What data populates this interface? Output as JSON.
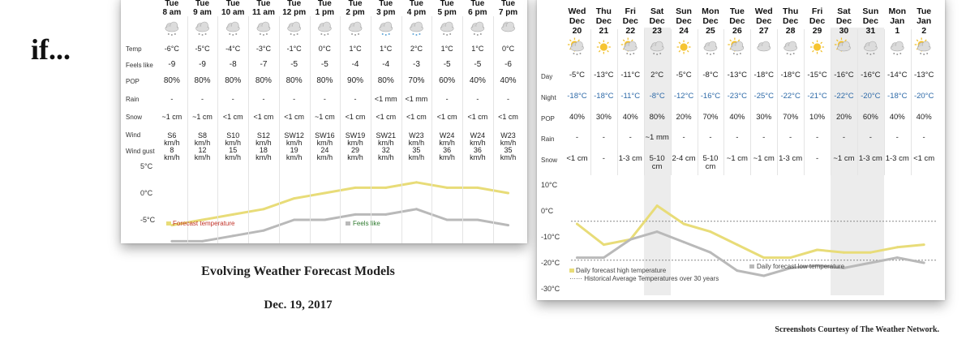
{
  "headline": "if...",
  "caption_title": "Evolving Weather Forecast Models",
  "caption_date": "Dec. 19, 2017",
  "credit": "Screenshots Courtesy of The Weather Network.",
  "hourly": {
    "row_labels": [
      "Temp",
      "Feels like",
      "POP",
      "Rain",
      "Snow",
      "Wind",
      "Wind gust"
    ],
    "hours": [
      {
        "day": "Tue",
        "time": "8 am",
        "icon": "cloud-snow-icon",
        "temp": "-6°C",
        "feels": "-9",
        "pop": "80%",
        "rain": "-",
        "snow": "~1 cm",
        "wind": "S6",
        "gust": "8"
      },
      {
        "day": "Tue",
        "time": "9 am",
        "icon": "cloud-snow-icon",
        "temp": "-5°C",
        "feels": "-9",
        "pop": "80%",
        "rain": "-",
        "snow": "~1 cm",
        "wind": "S8",
        "gust": "12"
      },
      {
        "day": "Tue",
        "time": "10 am",
        "icon": "cloud-snow-icon",
        "temp": "-4°C",
        "feels": "-8",
        "pop": "80%",
        "rain": "-",
        "snow": "<1 cm",
        "wind": "S10",
        "gust": "15"
      },
      {
        "day": "Tue",
        "time": "11 am",
        "icon": "cloud-snow-icon",
        "temp": "-3°C",
        "feels": "-7",
        "pop": "80%",
        "rain": "-",
        "snow": "<1 cm",
        "wind": "S12",
        "gust": "18"
      },
      {
        "day": "Tue",
        "time": "12 pm",
        "icon": "cloud-snow-icon",
        "temp": "-1°C",
        "feels": "-5",
        "pop": "80%",
        "rain": "-",
        "snow": "<1 cm",
        "wind": "SW12",
        "gust": "19"
      },
      {
        "day": "Tue",
        "time": "1 pm",
        "icon": "cloud-snow-icon",
        "temp": "0°C",
        "feels": "-5",
        "pop": "80%",
        "rain": "-",
        "snow": "~1 cm",
        "wind": "SW16",
        "gust": "24"
      },
      {
        "day": "Tue",
        "time": "2 pm",
        "icon": "cloud-snow-icon",
        "temp": "1°C",
        "feels": "-4",
        "pop": "90%",
        "rain": "-",
        "snow": "<1 cm",
        "wind": "SW19",
        "gust": "29"
      },
      {
        "day": "Tue",
        "time": "3 pm",
        "icon": "cloud-mixed-icon",
        "temp": "1°C",
        "feels": "-4",
        "pop": "80%",
        "rain": "<1 mm",
        "snow": "<1 cm",
        "wind": "SW21",
        "gust": "32"
      },
      {
        "day": "Tue",
        "time": "4 pm",
        "icon": "cloud-mixed-icon",
        "temp": "2°C",
        "feels": "-3",
        "pop": "70%",
        "rain": "<1 mm",
        "snow": "<1 cm",
        "wind": "W23",
        "gust": "35"
      },
      {
        "day": "Tue",
        "time": "5 pm",
        "icon": "cloud-snow-icon",
        "temp": "1°C",
        "feels": "-5",
        "pop": "60%",
        "rain": "-",
        "snow": "<1 cm",
        "wind": "W24",
        "gust": "36"
      },
      {
        "day": "Tue",
        "time": "6 pm",
        "icon": "cloud-snow-icon",
        "temp": "1°C",
        "feels": "-5",
        "pop": "40%",
        "rain": "-",
        "snow": "<1 cm",
        "wind": "W24",
        "gust": "36"
      },
      {
        "day": "Tue",
        "time": "7 pm",
        "icon": "cloud-night-icon",
        "temp": "0°C",
        "feels": "-6",
        "pop": "40%",
        "rain": "-",
        "snow": "<1 cm",
        "wind": "W23",
        "gust": "35"
      }
    ],
    "wind_unit": "km/h"
  },
  "daily": {
    "row_labels": [
      "Day",
      "Night",
      "POP",
      "Rain",
      "Snow"
    ],
    "days": [
      {
        "dow": "Wed",
        "month": "Dec",
        "date": "20",
        "icon": "sun-cloud-snow-icon",
        "day": "-5°C",
        "night": "-18°C",
        "pop": "40%",
        "rain": "-",
        "snow": "<1 cm"
      },
      {
        "dow": "Thu",
        "month": "Dec",
        "date": "21",
        "icon": "sun-icon",
        "day": "-13°C",
        "night": "-18°C",
        "pop": "30%",
        "rain": "-",
        "snow": "-"
      },
      {
        "dow": "Fri",
        "month": "Dec",
        "date": "22",
        "icon": "sun-cloud-snow-icon",
        "day": "-11°C",
        "night": "-11°C",
        "pop": "40%",
        "rain": "-",
        "snow": "1-3 cm"
      },
      {
        "dow": "Sat",
        "month": "Dec",
        "date": "23",
        "icon": "cloud-snow-icon",
        "day": "2°C",
        "night": "-8°C",
        "pop": "80%",
        "rain": "~1 mm",
        "snow": "5-10 cm",
        "shaded": true
      },
      {
        "dow": "Sun",
        "month": "Dec",
        "date": "24",
        "icon": "sun-icon",
        "day": "-5°C",
        "night": "-12°C",
        "pop": "20%",
        "rain": "-",
        "snow": "2-4 cm"
      },
      {
        "dow": "Mon",
        "month": "Dec",
        "date": "25",
        "icon": "cloud-snow-icon",
        "day": "-8°C",
        "night": "-16°C",
        "pop": "70%",
        "rain": "-",
        "snow": "5-10 cm"
      },
      {
        "dow": "Tue",
        "month": "Dec",
        "date": "26",
        "icon": "sun-cloud-snow-icon",
        "day": "-13°C",
        "night": "-23°C",
        "pop": "40%",
        "rain": "-",
        "snow": "~1 cm"
      },
      {
        "dow": "Wed",
        "month": "Dec",
        "date": "27",
        "icon": "cloud-icon",
        "day": "-18°C",
        "night": "-25°C",
        "pop": "30%",
        "rain": "-",
        "snow": "~1 cm"
      },
      {
        "dow": "Thu",
        "month": "Dec",
        "date": "28",
        "icon": "cloud-snow-icon",
        "day": "-18°C",
        "night": "-22°C",
        "pop": "70%",
        "rain": "-",
        "snow": "1-3 cm"
      },
      {
        "dow": "Fri",
        "month": "Dec",
        "date": "29",
        "icon": "sun-icon",
        "day": "-15°C",
        "night": "-21°C",
        "pop": "10%",
        "rain": "-",
        "snow": "-"
      },
      {
        "dow": "Sat",
        "month": "Dec",
        "date": "30",
        "icon": "sun-cloud-icon",
        "day": "-16°C",
        "night": "-22°C",
        "pop": "20%",
        "rain": "-",
        "snow": "~1 cm",
        "shaded": true
      },
      {
        "dow": "Sun",
        "month": "Dec",
        "date": "31",
        "icon": "cloud-snow-icon",
        "day": "-16°C",
        "night": "-20°C",
        "pop": "60%",
        "rain": "-",
        "snow": "1-3 cm",
        "shaded": true
      },
      {
        "dow": "Mon",
        "month": "Jan",
        "date": "1",
        "icon": "cloud-snow-icon",
        "day": "-14°C",
        "night": "-18°C",
        "pop": "40%",
        "rain": "-",
        "snow": "1-3 cm"
      },
      {
        "dow": "Tue",
        "month": "Jan",
        "date": "2",
        "icon": "sun-cloud-snow-icon",
        "day": "-13°C",
        "night": "-20°C",
        "pop": "40%",
        "rain": "-",
        "snow": "<1 cm"
      }
    ]
  },
  "chart_data": [
    {
      "type": "line",
      "x": [
        "8 am",
        "9 am",
        "10 am",
        "11 am",
        "12 pm",
        "1 pm",
        "2 pm",
        "3 pm",
        "4 pm",
        "5 pm",
        "6 pm",
        "7 pm"
      ],
      "series": [
        {
          "name": "Forecast temperature",
          "values": [
            -6,
            -5,
            -4,
            -3,
            -1,
            0,
            1,
            1,
            2,
            1,
            1,
            0
          ],
          "color": "#e8dc78"
        },
        {
          "name": "Feels like",
          "values": [
            -9,
            -9,
            -8,
            -7,
            -5,
            -5,
            -4,
            -4,
            -3,
            -5,
            -5,
            -6
          ],
          "color": "#b9b9b9"
        }
      ],
      "yticks": [
        "5°C",
        "0°C",
        "-5°C"
      ],
      "ylim": [
        -9,
        6
      ]
    },
    {
      "type": "line",
      "x": [
        "Dec 20",
        "Dec 21",
        "Dec 22",
        "Dec 23",
        "Dec 24",
        "Dec 25",
        "Dec 26",
        "Dec 27",
        "Dec 28",
        "Dec 29",
        "Dec 30",
        "Dec 31",
        "Jan 1",
        "Jan 2"
      ],
      "series": [
        {
          "name": "Daily forecast high temperature",
          "values": [
            -5,
            -13,
            -11,
            2,
            -5,
            -8,
            -13,
            -18,
            -18,
            -15,
            -16,
            -16,
            -14,
            -13
          ],
          "color": "#e8dc78"
        },
        {
          "name": "Daily forecast low temperature",
          "values": [
            -18,
            -18,
            -11,
            -8,
            -12,
            -16,
            -23,
            -25,
            -22,
            -21,
            -22,
            -20,
            -18,
            -20
          ],
          "color": "#b9b9b9"
        }
      ],
      "reference_lines": [
        {
          "name": "Historical Average Temperatures over 30 years",
          "values": [
            -4,
            -19
          ]
        }
      ],
      "yticks": [
        "10°C",
        "0°C",
        "-10°C",
        "-20°C",
        "-30°C"
      ],
      "ylim": [
        -30,
        10
      ]
    }
  ]
}
